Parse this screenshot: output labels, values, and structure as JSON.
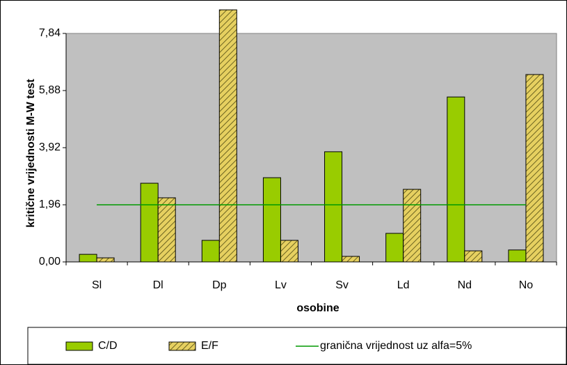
{
  "chart_data": {
    "type": "bar",
    "ylabel": "kritične vrijednosti M-W test",
    "xlabel": "osobine",
    "categories": [
      "Sl",
      "Dl",
      "Dp",
      "Lv",
      "Sv",
      "Ld",
      "Nd",
      "No"
    ],
    "series": [
      {
        "name": "C/D",
        "color": "#99cc00",
        "values": [
          0.26,
          2.7,
          0.74,
          2.89,
          3.78,
          0.98,
          5.66,
          0.41
        ]
      },
      {
        "name": "E/F",
        "color": "#e6d060",
        "pattern": "hatch",
        "values": [
          0.14,
          2.2,
          8.65,
          0.74,
          0.19,
          2.49,
          0.38,
          6.43
        ]
      }
    ],
    "threshold": {
      "name": "granična vrijednost uz alfa=5%",
      "value": 1.96,
      "color": "#009900"
    },
    "ylim": [
      0,
      7.84
    ],
    "yticks": [
      {
        "value": 0,
        "label": "0,00"
      },
      {
        "value": 1.96,
        "label": "1,96"
      },
      {
        "value": 3.92,
        "label": "3,92"
      },
      {
        "value": 5.88,
        "label": "5,88"
      },
      {
        "value": 7.84,
        "label": "7,84"
      }
    ]
  }
}
